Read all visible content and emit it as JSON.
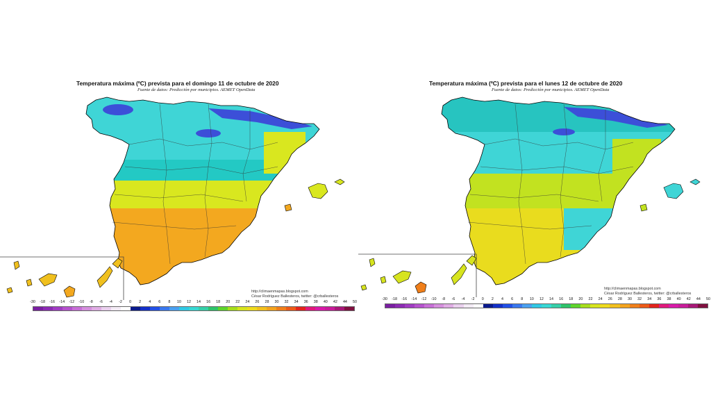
{
  "maps": [
    {
      "title": "Temperatura máxima (ºC) prevista para el domingo 11 de octubre de 2020",
      "subtitle": "Fuente de datos: Predicción por municipios. AEMET OpenData",
      "credit_line1": "http://climaenmapas.blogspot.com",
      "credit_line2": "César Rodríguez Ballesteros, twitter: @crballesteros",
      "regions": [
        {
          "label": "north-coast",
          "color": "#3c4fd8"
        },
        {
          "label": "north",
          "color": "#3fd5d6"
        },
        {
          "label": "center",
          "color": "#23c9c4"
        },
        {
          "label": "center-south",
          "color": "#d9e71f"
        },
        {
          "label": "south",
          "color": "#f3a81f"
        },
        {
          "label": "islands",
          "color": "#f0c01e"
        }
      ]
    },
    {
      "title": "Temperatura máxima (ºC) prevista para el lunes 12 de octubre de 2020",
      "subtitle": "Fuente de datos: Predicción por municipios. AEMET OpenData",
      "credit_line1": "http://climaenmapas.blogspot.com",
      "credit_line2": "César Rodríguez Ballesteros, twitter: @crballesteros",
      "regions": [
        {
          "label": "north-coast",
          "color": "#3c4fd8"
        },
        {
          "label": "north",
          "color": "#27c4c0"
        },
        {
          "label": "center",
          "color": "#3fd5d6"
        },
        {
          "label": "center-south",
          "color": "#c2e220"
        },
        {
          "label": "south",
          "color": "#e9dc1e"
        },
        {
          "label": "islands",
          "color": "#d7e41f"
        }
      ]
    }
  ],
  "legend": {
    "ticks": [
      "-30",
      "-18",
      "-16",
      "-14",
      "-12",
      "-10",
      "-8",
      "-6",
      "-4",
      "-2",
      "0",
      "2",
      "4",
      "6",
      "8",
      "10",
      "12",
      "14",
      "16",
      "18",
      "20",
      "22",
      "24",
      "26",
      "28",
      "30",
      "32",
      "34",
      "36",
      "38",
      "40",
      "42",
      "44",
      "50"
    ],
    "colors": [
      "#7a1fa2",
      "#8c2bb3",
      "#a03cc2",
      "#b552cd",
      "#c76fd6",
      "#d58fdd",
      "#e0ade4",
      "#ead0ee",
      "#f4ecf6",
      "#ffffff",
      "#0a1a8c",
      "#1430c8",
      "#2250e6",
      "#3a78ee",
      "#4aa0f0",
      "#30c8e4",
      "#38d8d4",
      "#36cfa8",
      "#2ec36a",
      "#5ed42c",
      "#a6de1c",
      "#d6e41e",
      "#eedb1e",
      "#f2c01e",
      "#f3a31e",
      "#f07f1a",
      "#ec5a18",
      "#e2241c",
      "#e0197c",
      "#d81aa8",
      "#c81c9a",
      "#a81878",
      "#801040"
    ]
  }
}
